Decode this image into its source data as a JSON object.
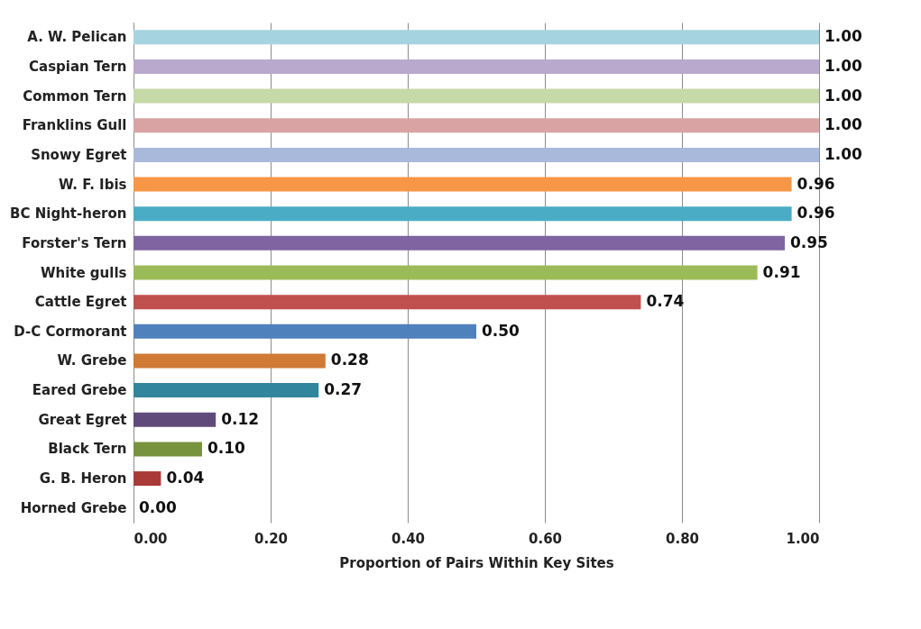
{
  "chart_data": {
    "type": "bar",
    "orientation": "horizontal",
    "xlabel": "Proportion of Pairs Within Key Sites",
    "categories": [
      "A. W. Pelican",
      "Caspian Tern",
      "Common Tern",
      "Franklins Gull",
      "Snowy Egret",
      "W. F. Ibis",
      "BC Night-heron",
      "Forster's Tern",
      "White gulls",
      "Cattle Egret",
      "D-C Cormorant",
      "W. Grebe",
      "Eared Grebe",
      "Great Egret",
      "Black Tern",
      "G. B. Heron",
      "Horned Grebe"
    ],
    "values": [
      1.0,
      1.0,
      1.0,
      1.0,
      1.0,
      0.96,
      0.96,
      0.95,
      0.91,
      0.74,
      0.5,
      0.28,
      0.27,
      0.12,
      0.1,
      0.04,
      0.0
    ],
    "value_labels": [
      "1.00",
      "1.00",
      "1.00",
      "1.00",
      "1.00",
      "0.96",
      "0.96",
      "0.95",
      "0.91",
      "0.74",
      "0.50",
      "0.28",
      "0.27",
      "0.12",
      "0.10",
      "0.04",
      "0.00"
    ],
    "colors": [
      "#a5d4e0",
      "#b9a9cc",
      "#c6d9a8",
      "#d9a3a3",
      "#a9b9dc",
      "#f79646",
      "#4bacc6",
      "#8064a2",
      "#9bbb59",
      "#c0504d",
      "#4f81bd",
      "#d07a35",
      "#31859c",
      "#604a7b",
      "#77933c",
      "#a93a37",
      "#7f7f7f"
    ],
    "xlim": [
      0,
      1
    ],
    "xticks": [
      {
        "value": 0,
        "label": "0.00"
      },
      {
        "value": 0.2,
        "label": "0.20"
      },
      {
        "value": 0.4,
        "label": "0.40"
      },
      {
        "value": 0.6,
        "label": "0.60"
      },
      {
        "value": 0.8,
        "label": "0.80"
      },
      {
        "value": 1,
        "label": "1.00"
      }
    ],
    "grid": "x"
  }
}
